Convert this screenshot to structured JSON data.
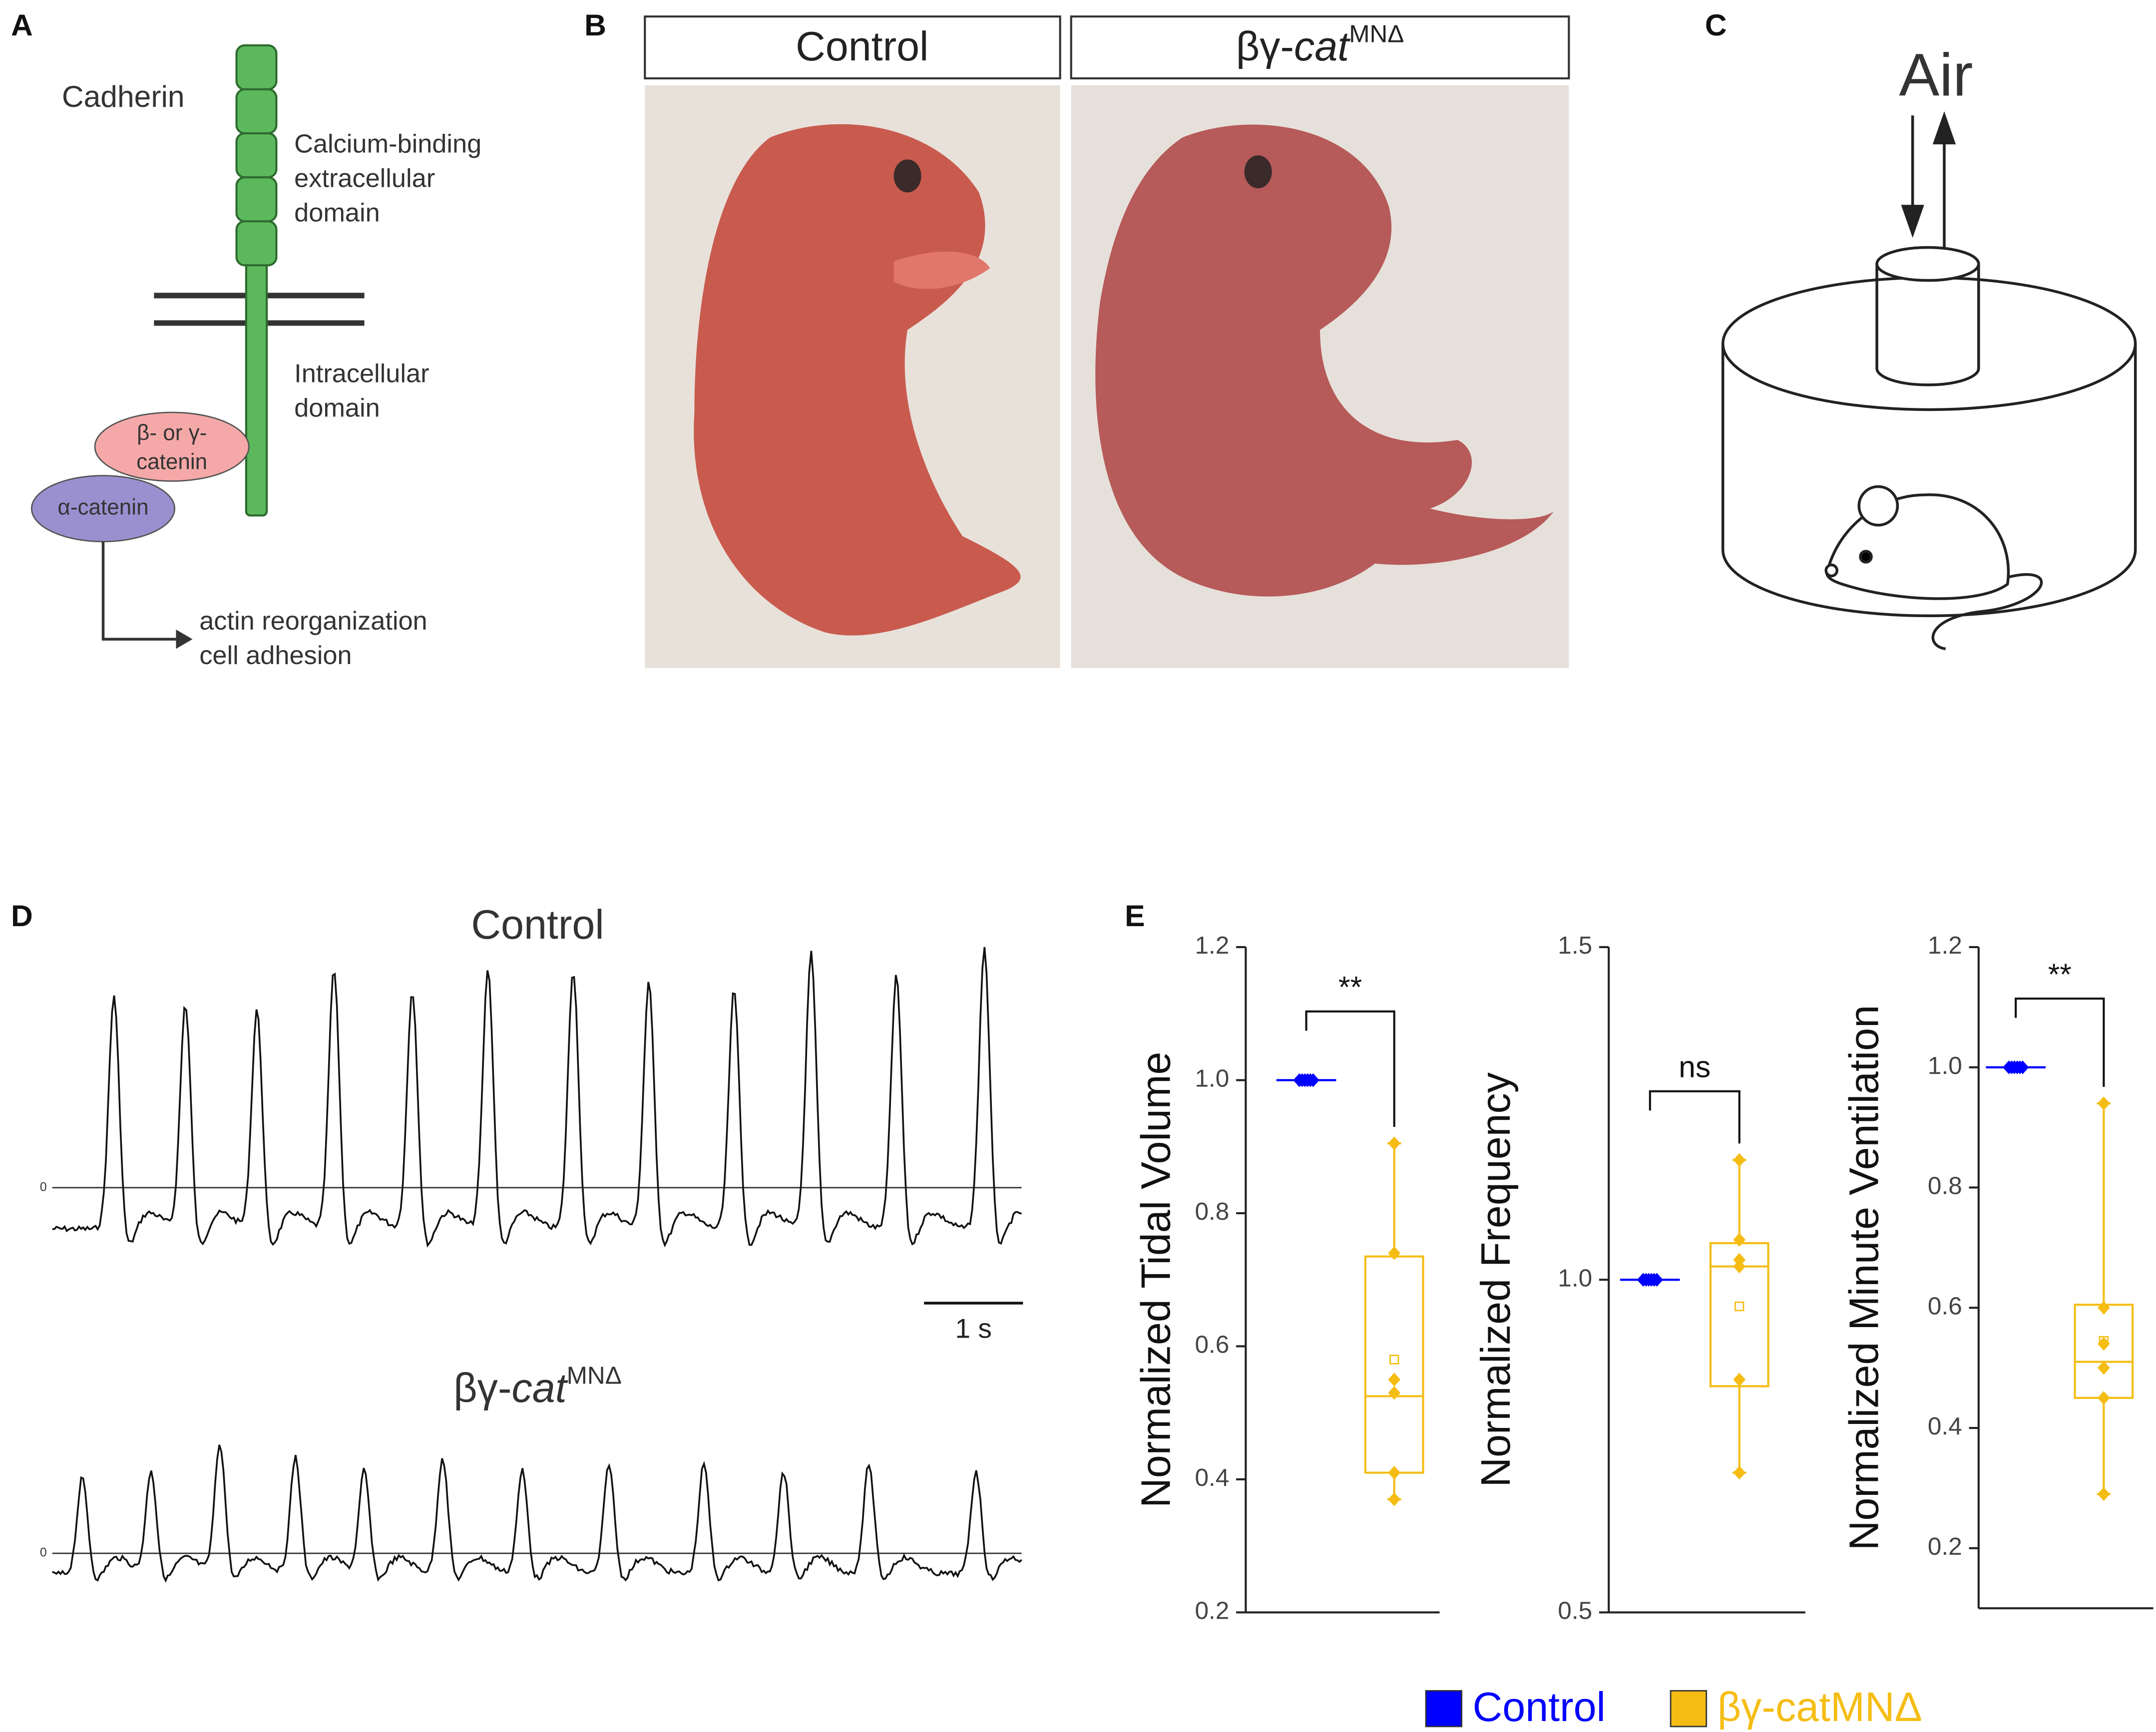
{
  "panel_labels": [
    "A",
    "B",
    "C",
    "D",
    "E"
  ],
  "panel_a": {
    "protein": "Cadherin",
    "extracellular": [
      "Calcium-binding",
      "extracellular",
      "domain"
    ],
    "intracellular": [
      "Intracellular",
      "domain"
    ],
    "beta_gamma": [
      "β- or γ-",
      "catenin"
    ],
    "alpha": "α-catenin",
    "outcome": [
      "actin reorganization",
      "cell adhesion"
    ]
  },
  "panel_b": {
    "control": "Control",
    "mutant": {
      "prefix": "βγ-",
      "italic": "cat",
      "sup": "MNΔ"
    }
  },
  "panel_c": {
    "label": "Air"
  },
  "panel_d": {
    "control": "Control",
    "mutant": {
      "prefix": "βγ-",
      "italic": "cat",
      "sup": "MNΔ"
    },
    "zero": "0",
    "scale": "1 s"
  },
  "chart_data": [
    {
      "type": "box",
      "y_label": "Normalized Tidal Volume",
      "ylim": [
        0.2,
        1.2
      ],
      "yticks": [
        0.2,
        0.4,
        0.6,
        0.8,
        {
          "value": 1,
          "label": "1.0"
        },
        1.2
      ],
      "annotation": "**",
      "legend": "bottom",
      "series": [
        {
          "name": "Control",
          "color": "#0000ff",
          "values": [
            1,
            1,
            1,
            1,
            1,
            1
          ],
          "box": {
            "min": 1,
            "q1": 1,
            "median": 1,
            "q3": 1,
            "max": 1,
            "mean": 1
          }
        },
        {
          "name": "βγ-catMNΔ",
          "color": "#f5bd14",
          "values": [
            0.905,
            0.74,
            0.55,
            0.53,
            0.41,
            0.37
          ],
          "box": {
            "min": 0.37,
            "q1": 0.41,
            "median": 0.525,
            "q3": 0.735,
            "max": 0.905,
            "mean": 0.58
          }
        }
      ]
    },
    {
      "type": "box",
      "y_label": "Normalized Frequency",
      "ylim": [
        0.5,
        1.5
      ],
      "yticks": [
        0.5,
        {
          "value": 1,
          "label": "1.0"
        },
        1.5
      ],
      "annotation": "ns",
      "series": [
        {
          "name": "Control",
          "color": "#0000ff",
          "values": [
            1,
            1,
            1,
            1,
            1,
            1
          ],
          "box": {
            "min": 1,
            "q1": 1,
            "median": 1,
            "q3": 1,
            "max": 1,
            "mean": 1
          }
        },
        {
          "name": "βγ-catMNΔ",
          "color": "#f5bd14",
          "values": [
            1.18,
            1.06,
            1.03,
            1.02,
            0.85,
            0.71
          ],
          "box": {
            "min": 0.71,
            "q1": 0.84,
            "median": 1.02,
            "q3": 1.055,
            "max": 1.18,
            "mean": 0.96
          }
        }
      ]
    },
    {
      "type": "box",
      "y_label": "Normalized Minute Ventilation",
      "ylim": [
        0.1,
        1.2
      ],
      "yticks": [
        0.2,
        0.4,
        0.6,
        0.8,
        {
          "value": 1,
          "label": "1.0"
        },
        1.2
      ],
      "annotation": "**",
      "series": [
        {
          "name": "Control",
          "color": "#0000ff",
          "values": [
            1,
            1,
            1,
            1,
            1,
            1
          ],
          "box": {
            "min": 1,
            "q1": 1,
            "median": 1,
            "q3": 1,
            "max": 1,
            "mean": 1
          }
        },
        {
          "name": "βγ-catMNΔ",
          "color": "#f5bd14",
          "values": [
            0.94,
            0.6,
            0.54,
            0.5,
            0.45,
            0.29
          ],
          "box": {
            "min": 0.29,
            "q1": 0.45,
            "median": 0.51,
            "q3": 0.605,
            "max": 0.94,
            "mean": 0.545
          }
        }
      ]
    }
  ]
}
